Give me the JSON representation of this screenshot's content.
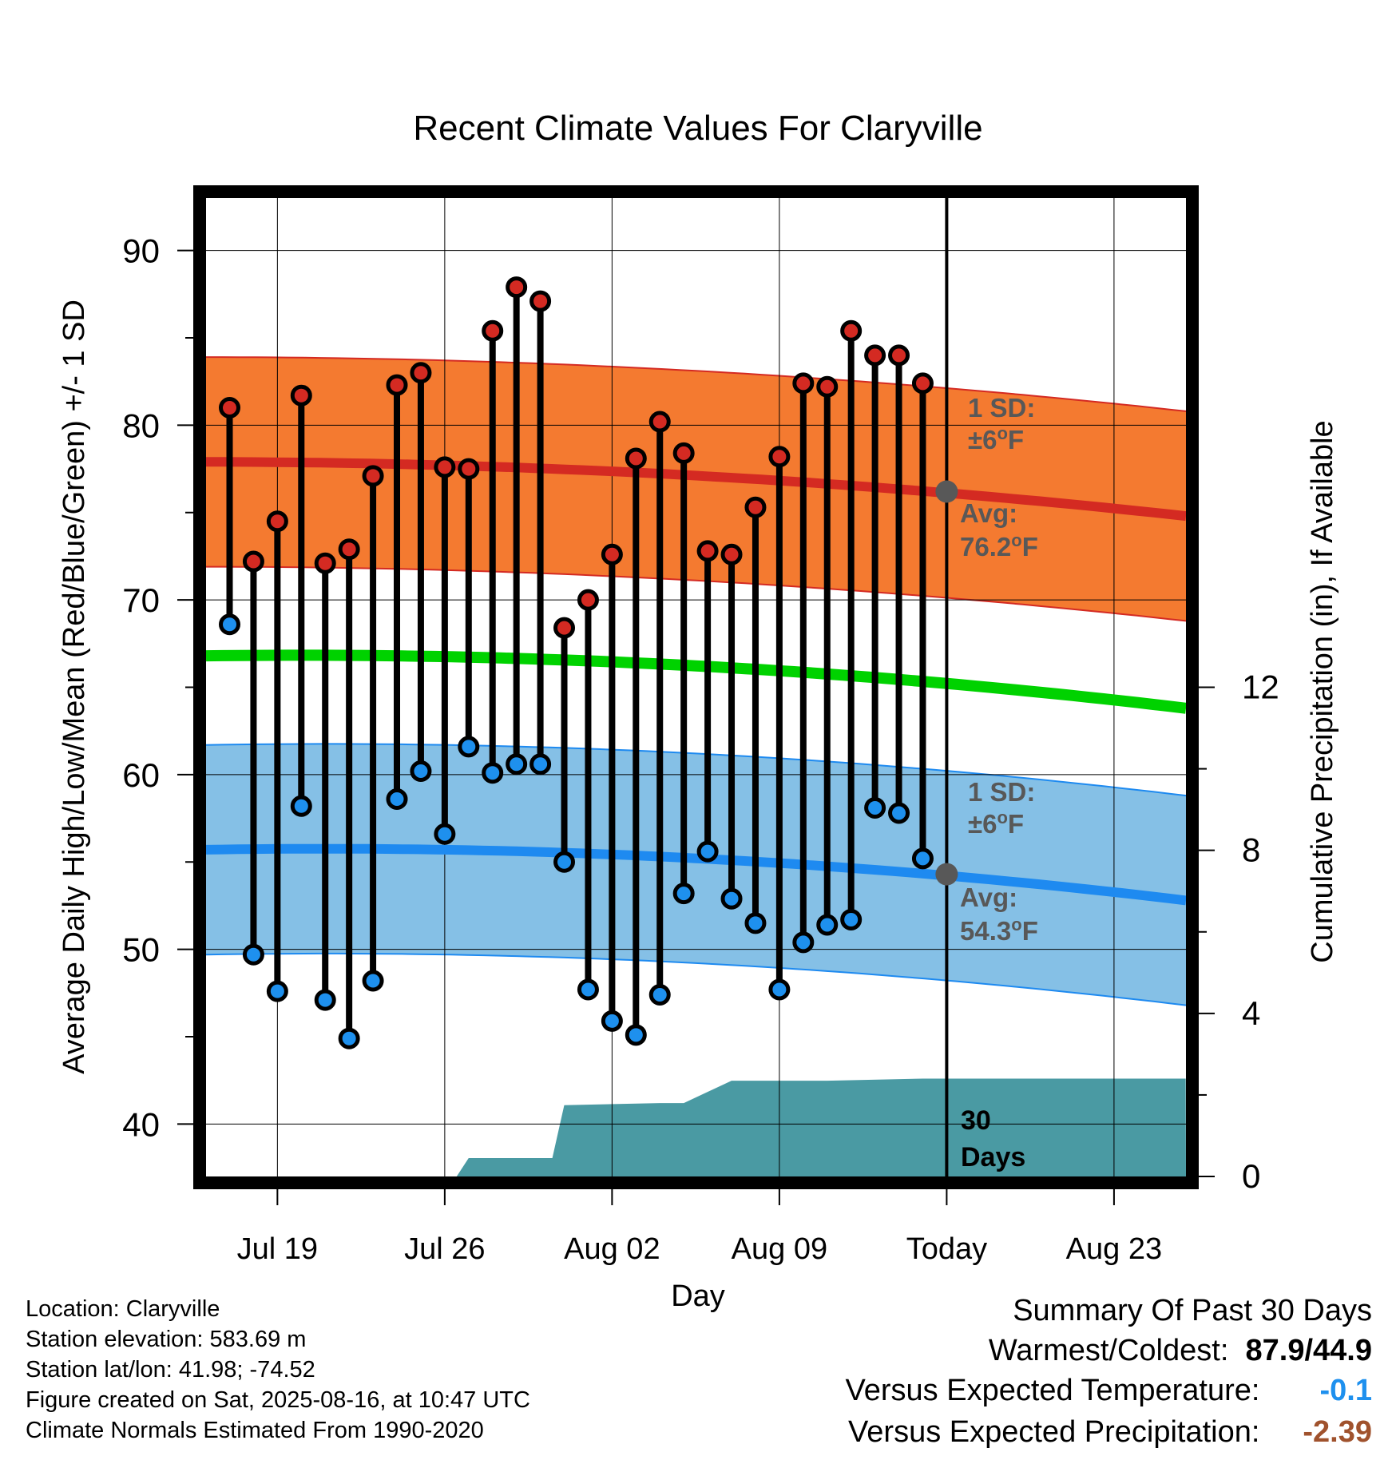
{
  "chart_data": {
    "type": "line",
    "title": "Recent Climate Values For Claryville",
    "xlabel": "Day",
    "ylabel": "Average Daily High/Low/Mean (Red/Blue/Green) +/- 1 SD",
    "y2label": "Cumulative Precipitation (in), If Available",
    "ylim": [
      37,
      93
    ],
    "y2lim": [
      0,
      24
    ],
    "yticks": [
      "40",
      "50",
      "60",
      "70",
      "80",
      "90"
    ],
    "y2ticks": [
      "0",
      "4",
      "8",
      "12"
    ],
    "xticks": [
      "Jul 19",
      "Jul 26",
      "Aug 02",
      "Aug 09",
      "Today",
      "Aug 23"
    ],
    "grid": true,
    "today_label": "Today",
    "days": [
      "Jul 17",
      "Jul 18",
      "Jul 19",
      "Jul 20",
      "Jul 21",
      "Jul 22",
      "Jul 23",
      "Jul 24",
      "Jul 25",
      "Jul 26",
      "Jul 27",
      "Jul 28",
      "Jul 29",
      "Jul 30",
      "Jul 31",
      "Aug 01",
      "Aug 02",
      "Aug 03",
      "Aug 04",
      "Aug 05",
      "Aug 06",
      "Aug 07",
      "Aug 08",
      "Aug 09",
      "Aug 10",
      "Aug 11",
      "Aug 12",
      "Aug 13",
      "Aug 14",
      "Aug 15"
    ],
    "highs": [
      81.0,
      72.2,
      74.5,
      81.7,
      72.1,
      72.9,
      77.1,
      82.3,
      83.0,
      77.6,
      77.5,
      85.4,
      87.9,
      87.1,
      68.4,
      70.0,
      72.6,
      78.1,
      80.2,
      78.4,
      72.8,
      72.6,
      75.3,
      78.2,
      82.4,
      82.2,
      85.4,
      84.0,
      84.0,
      82.4
    ],
    "lows": [
      68.6,
      49.7,
      47.6,
      58.2,
      47.1,
      44.9,
      48.2,
      58.6,
      60.2,
      56.6,
      61.6,
      60.1,
      60.6,
      60.6,
      55.0,
      47.7,
      45.9,
      45.1,
      47.4,
      53.2,
      55.6,
      52.9,
      51.5,
      47.7,
      50.4,
      51.4,
      51.7,
      58.1,
      57.8,
      55.2
    ],
    "normal_high": {
      "name": "Avg",
      "start": 77.9,
      "today": 76.2,
      "end": 74.8,
      "sd": 6
    },
    "normal_low": {
      "name": "Avg",
      "start": 55.7,
      "today": 54.3,
      "end": 52.8,
      "sd": 6
    },
    "normal_mean": {
      "start": 66.8,
      "today": 65.3,
      "end": 63.8
    },
    "precip_steps": [
      {
        "day": "Jul 26.5",
        "value": 0.0
      },
      {
        "day": "Jul 27",
        "value": 0.45
      },
      {
        "day": "Jul 30.5",
        "value": 0.45
      },
      {
        "day": "Jul 31",
        "value": 1.75
      },
      {
        "day": "Aug 04",
        "value": 1.8
      },
      {
        "day": "Aug 05",
        "value": 1.8
      },
      {
        "day": "Aug 07",
        "value": 2.35
      },
      {
        "day": "Aug 11",
        "value": 2.35
      },
      {
        "day": "Aug 15",
        "value": 2.4
      },
      {
        "day": "Aug 26",
        "value": 2.4
      }
    ],
    "annotations": {
      "high_sd_line1": "1 SD:",
      "high_sd_line2": "±6",
      "high_avg_line1": "Avg:",
      "high_avg_line2": "76.2",
      "low_sd_line1": "1 SD:",
      "low_sd_line2": "±6",
      "low_avg_line1": "Avg:",
      "low_avg_line2": "54.3",
      "deg": "o",
      "unit": "F",
      "days_line1": "30",
      "days_line2": "Days"
    },
    "colors": {
      "high_band": "#f47a30",
      "high_line": "#d42a22",
      "low_band": "#85c0e6",
      "low_line": "#1e8af0",
      "mean_line": "#00d200",
      "precip": "#4a9aa3",
      "high_dot": "#d42a22",
      "low_dot": "#1e90ee",
      "avg_text": "#585858"
    }
  },
  "info": {
    "location": "Location: Claryville",
    "elevation": "Station elevation: 583.69 m",
    "latlon": "Station lat/lon: 41.98; -74.52",
    "created": "Figure created on Sat, 2025-08-16, at 10:47 UTC",
    "normals": "Climate Normals Estimated From 1990-2020"
  },
  "summary": {
    "title": "Summary Of Past 30 Days",
    "warm_label": "Warmest/Coldest:",
    "warm_value": "87.9/44.9",
    "temp_label": "Versus Expected Temperature:",
    "temp_value": "-0.1",
    "temp_color": "#1e90ee",
    "precip_label": "Versus Expected Precipitation:",
    "precip_value": "-2.39",
    "precip_color": "#a0522d"
  }
}
